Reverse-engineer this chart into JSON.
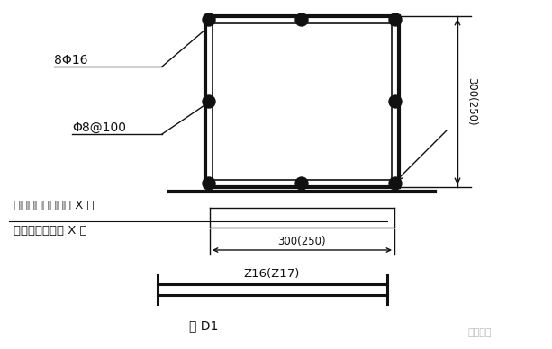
{
  "bg_color": "#ffffff",
  "line_color": "#111111",
  "fig_width": 6.13,
  "fig_height": 3.88,
  "dpi": 100,
  "label_8phi16": "8Φ16",
  "label_phi8at100": "Φ8@100",
  "label_line1": "见设计变更通知单 X 号",
  "label_line2": "或工程洽商记录 X 号",
  "label_300_250_h": "300(250)",
  "label_300_250_w": "300(250)",
  "label_z16z17": "Z16(Z17)",
  "label_fig": "图 D1",
  "watermark": "豆丁施工"
}
